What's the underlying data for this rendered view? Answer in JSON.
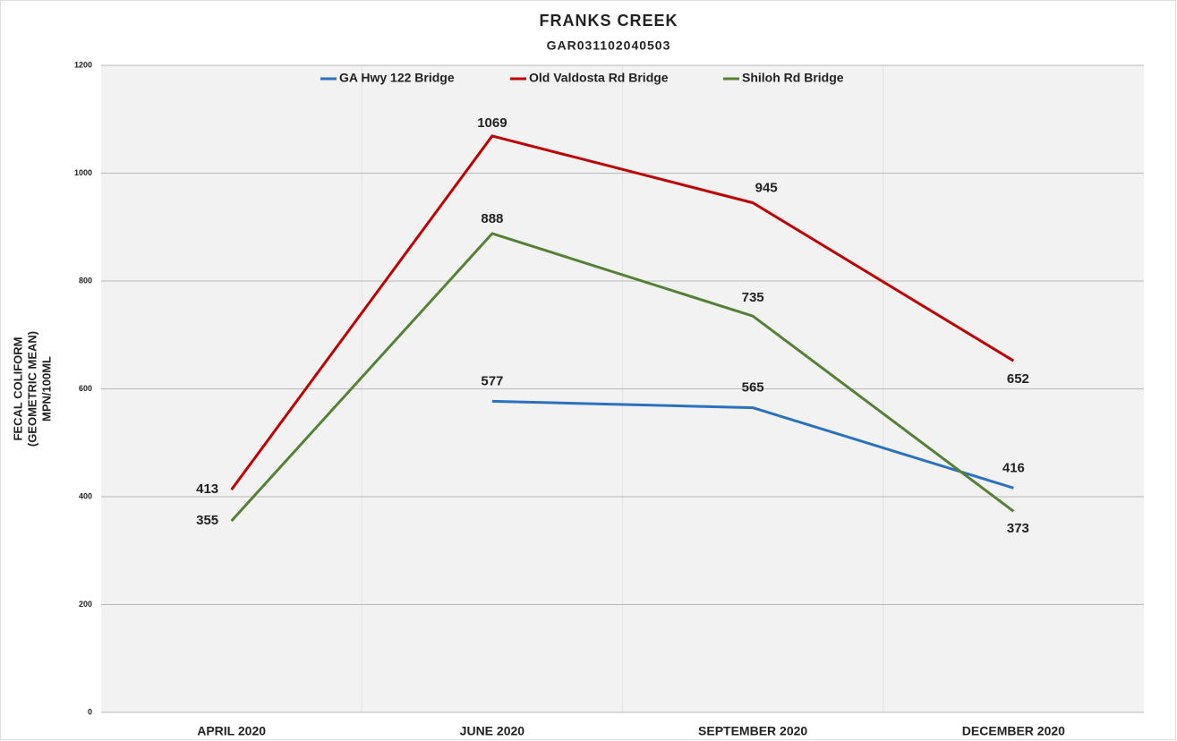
{
  "chart_data": {
    "type": "line",
    "title": "FRANKS CREEK",
    "subtitle": "GAR031102040503",
    "y_label": [
      "FECAL COLIFORM",
      "(GEOMETRIC MEAN)",
      "MPN/100ML"
    ],
    "categories": [
      "APRIL 2020",
      "JUNE 2020",
      "SEPTEMBER 2020",
      "DECEMBER 2020"
    ],
    "series": [
      {
        "name": "GA Hwy 122 Bridge",
        "color": "#2a72c0",
        "values": [
          null,
          577,
          565,
          416
        ]
      },
      {
        "name": "Old Valdosta Rd Bridge",
        "color": "#c00000",
        "values": [
          413,
          1069,
          945,
          652
        ]
      },
      {
        "name": "Shiloh Rd Bridge",
        "color": "#548235",
        "values": [
          355,
          888,
          735,
          373
        ]
      }
    ],
    "ylim": [
      0,
      1200
    ],
    "yticks": [
      0,
      200,
      400,
      600,
      800,
      1000,
      1200
    ],
    "grid": true,
    "legend": "top"
  }
}
